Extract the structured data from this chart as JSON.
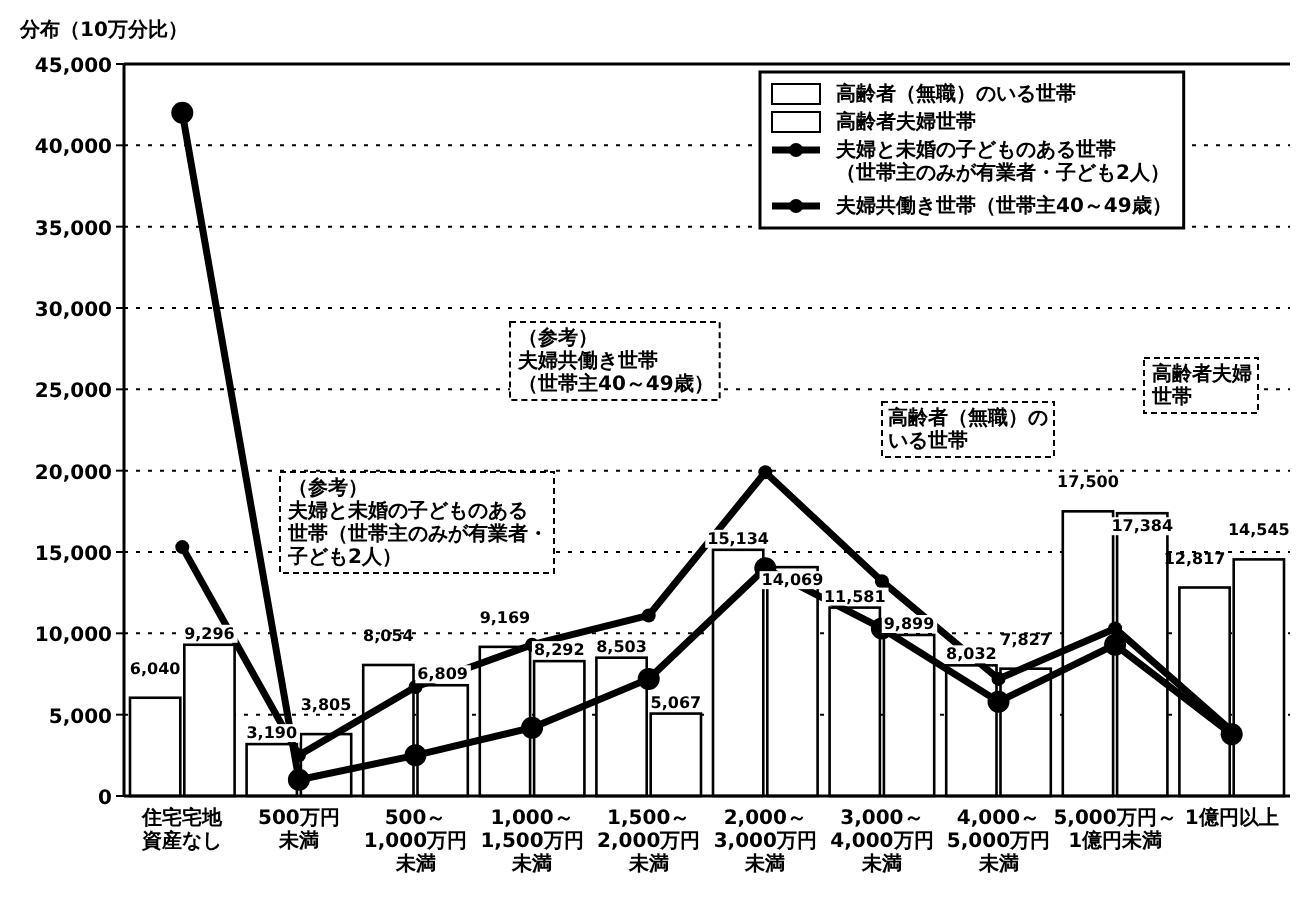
{
  "chart_data": {
    "type": "bar",
    "ylabel": "分布（10万分比）",
    "categories": [
      "住宅宅地資産なし",
      "500万円未満",
      "500～1,000万円未満",
      "1,000～1,500万円未満",
      "1,500～2,000万円未満",
      "2,000～3,000万円未満",
      "3,000～4,000万円未満",
      "4,000～5,000万円未満",
      "5,000万円～1億円未満",
      "1億円以上"
    ],
    "series": [
      {
        "name": "高齢者（無職）のいる世帯",
        "color": "#ffffff",
        "values": [
          6040,
          3190,
          8054,
          9169,
          8503,
          15134,
          11581,
          8032,
          17500,
          12817
        ],
        "value_labels": [
          "6,040",
          "3,190",
          "8,054",
          "9,169",
          "8,503",
          "15,134",
          "11,581",
          "8,032",
          "17,500",
          "12,817"
        ]
      },
      {
        "name": "高齢者夫婦世帯",
        "color": "#ffffff",
        "values": [
          9296,
          3805,
          6809,
          8292,
          5067,
          14069,
          9899,
          7827,
          17384,
          14545
        ],
        "value_labels": [
          "9,296",
          "3,805",
          "6,809",
          "8,292",
          "5,067",
          "14,069",
          "9,899",
          "7,827",
          "17,384",
          "14,545"
        ]
      },
      {
        "name": "夫婦と未婚の子どものある世帯（世帯主のみが有業者・子ども2人）",
        "type": "line",
        "color": "#000000",
        "values": [
          42000,
          1000,
          2500,
          4200,
          7200,
          14000,
          10300,
          5800,
          9300,
          3800
        ]
      },
      {
        "name": "夫婦共働き世帯（世帯主40～49歳）",
        "type": "line",
        "color": "#000000",
        "values": [
          15300,
          2500,
          6700,
          9300,
          11100,
          19900,
          13200,
          7200,
          10300,
          4000
        ]
      }
    ],
    "ylim": [
      0,
      45000
    ],
    "yticks": [
      {
        "value": 0,
        "label": "0"
      },
      {
        "value": 5000,
        "label": "5,000"
      },
      {
        "value": 10000,
        "label": "10,000"
      },
      {
        "value": 15000,
        "label": "15,000"
      },
      {
        "value": 20000,
        "label": "20,000"
      },
      {
        "value": 25000,
        "label": "25,000"
      },
      {
        "value": 30000,
        "label": "30,000"
      },
      {
        "value": 35000,
        "label": "35,000"
      },
      {
        "value": 40000,
        "label": "40,000"
      },
      {
        "value": 45000,
        "label": "45,000"
      }
    ],
    "grid": "y",
    "legend": "top right",
    "marker": "circle",
    "line_style": "solid",
    "annotations": [
      "（参考）夫婦共働き世帯（世帯主40～49歳）",
      "（参考）夫婦と未婚の子どものある世帯（世帯主のみが有業者・子ども2人）",
      "高齢者（無職）のいる世帯",
      "高齢者夫婦世帯"
    ]
  }
}
